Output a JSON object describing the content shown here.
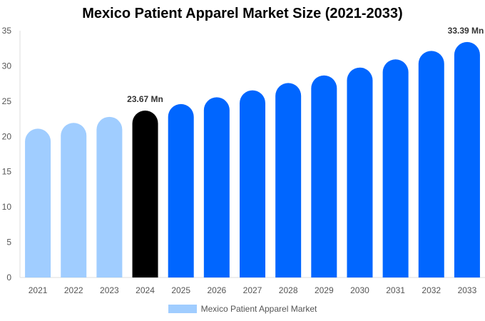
{
  "chart_data": {
    "type": "bar",
    "title": "Mexico Patient Apparel Market Size (2021-2033)",
    "categories": [
      "2021",
      "2022",
      "2023",
      "2024",
      "2025",
      "2026",
      "2027",
      "2028",
      "2029",
      "2030",
      "2031",
      "2032",
      "2033"
    ],
    "series": [
      {
        "name": "Mexico Patient Apparel Market",
        "values": [
          21.1,
          21.93,
          22.78,
          23.67,
          24.59,
          25.55,
          26.54,
          27.58,
          28.65,
          29.77,
          30.93,
          32.13,
          33.39
        ]
      }
    ],
    "data_labels": {
      "3": "23.67 Mn",
      "12": "33.39 Mn"
    },
    "ylim": [
      0,
      35
    ],
    "yticks": [
      0,
      5,
      10,
      15,
      20,
      25,
      30,
      35
    ],
    "xlabel": "",
    "ylabel": "",
    "grid": false,
    "legend_position": "bottom",
    "colors": {
      "historical": "#a0cdff",
      "current": "#000000",
      "forecast": "#0066ff"
    }
  }
}
